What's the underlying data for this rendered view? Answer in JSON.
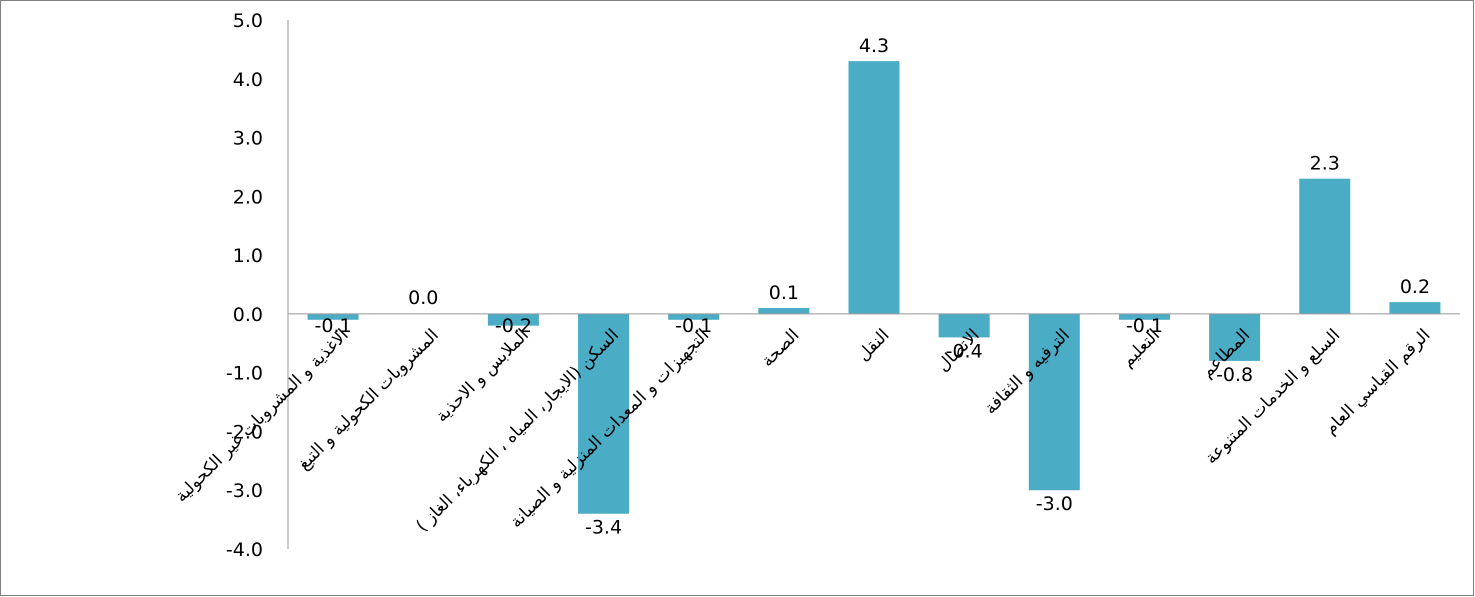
{
  "chart_data": {
    "type": "bar",
    "title": "",
    "xlabel": "",
    "ylabel": "",
    "ylim": [
      -4.0,
      5.0
    ],
    "yticks": [
      5.0,
      4.0,
      3.0,
      2.0,
      1.0,
      0.0,
      -1.0,
      -2.0,
      -3.0,
      -4.0
    ],
    "ytick_labels": [
      "5.0",
      "4.0",
      "3.0",
      "2.0",
      "1.0",
      "0.0",
      "-1.0",
      "-2.0",
      "-3.0",
      "-4.0"
    ],
    "grid": false,
    "bar_color": "#4BACC6",
    "categories": [
      "الاغذية و المشروبات غير الكحولية",
      "المشروبات الكحولية و التبغ",
      "الملابس و الاحذية",
      "السكن (الايجار، المياه ، الكهرباء، الغاز )",
      "التجهيزات و المعدات المنزلية و الصيانة",
      "الصحة",
      "النقل",
      "الاتصال",
      "الترفيه و الثقافة",
      "التعليم",
      "المطاعم",
      "السلع و الخدمات المتنوعة",
      "الرقم القياسي العام"
    ],
    "values": [
      -0.1,
      0.0,
      -0.2,
      -3.4,
      -0.1,
      0.1,
      4.3,
      -0.4,
      -3.0,
      -0.1,
      -0.8,
      2.3,
      0.2
    ],
    "data_labels": [
      "-0.1",
      "0.0",
      "-0.2",
      "-3.4",
      "-0.1",
      "0.1",
      "4.3",
      "-0.4",
      "-3.0",
      "-0.1",
      "-0.8",
      "2.3",
      "0.2"
    ]
  }
}
